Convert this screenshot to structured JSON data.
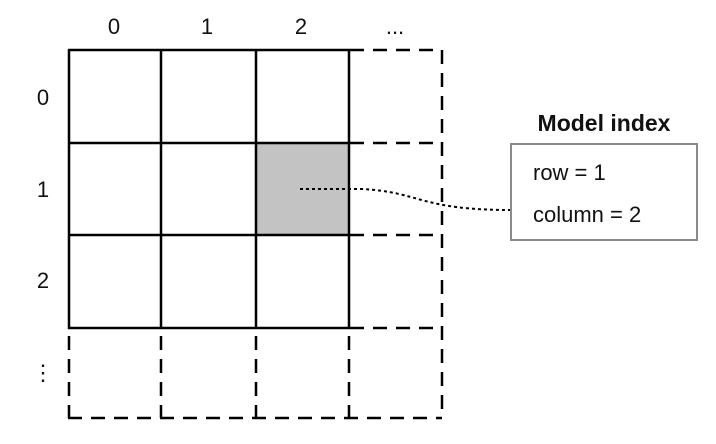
{
  "columns": [
    "0",
    "1",
    "2",
    "..."
  ],
  "rows": [
    "0",
    "1",
    "2",
    "⋮"
  ],
  "highlight_color": "#c3c3c3",
  "box_border_color": "#8a8a8a",
  "model_index": {
    "title": "Model index",
    "row_text": "row = 1",
    "column_text": "column = 2"
  }
}
